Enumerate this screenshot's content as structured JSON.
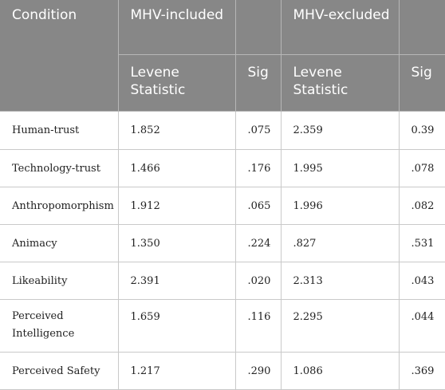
{
  "table": {
    "header": {
      "condition": "Condition",
      "group1": "MHV-included",
      "group2": "MHV-excluded",
      "levene1": "Levene Statistic",
      "sig1": "Sig",
      "levene2": "Levene Statistic",
      "sig2": "Sig"
    },
    "rows": [
      {
        "condition": "Human-trust",
        "levene_incl": "1.852",
        "sig_incl": ".075",
        "levene_excl": "2.359",
        "sig_excl": "0.39"
      },
      {
        "condition": "Technology-trust",
        "levene_incl": "1.466",
        "sig_incl": ".176",
        "levene_excl": "1.995",
        "sig_excl": ".078"
      },
      {
        "condition": "Anthropomorphism",
        "levene_incl": "1.912",
        "sig_incl": ".065",
        "levene_excl": "1.996",
        "sig_excl": ".082"
      },
      {
        "condition": "Animacy",
        "levene_incl": "1.350",
        "sig_incl": ".224",
        "levene_excl": ".827",
        "sig_excl": ".531"
      },
      {
        "condition": "Likeability",
        "levene_incl": "2.391",
        "sig_incl": ".020",
        "levene_excl": "2.313",
        "sig_excl": ".043"
      },
      {
        "condition": "Perceived Intelligence",
        "levene_incl": "1.659",
        "sig_incl": ".116",
        "levene_excl": "2.295",
        "sig_excl": ".044"
      },
      {
        "condition": "Perceived Safety",
        "levene_incl": "1.217",
        "sig_incl": ".290",
        "levene_excl": "1.086",
        "sig_excl": ".369"
      }
    ]
  }
}
